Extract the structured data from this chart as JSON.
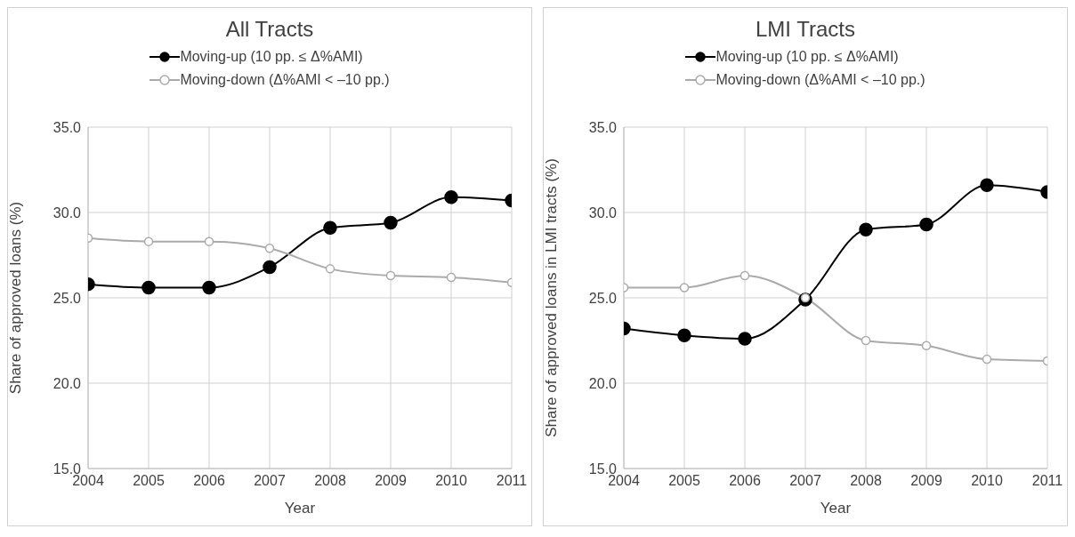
{
  "chart_data": [
    {
      "type": "line",
      "title": "All Tracts",
      "xlabel": "Year",
      "ylabel": "Share of approved loans (%)",
      "x": [
        2004,
        2005,
        2006,
        2007,
        2008,
        2009,
        2010,
        2011
      ],
      "series": [
        {
          "name": "Moving-up (10 pp. ≤ Δ%AMI)",
          "color": "#000000",
          "values": [
            25.8,
            25.6,
            25.6,
            26.8,
            29.1,
            29.4,
            30.9,
            30.7
          ]
        },
        {
          "name": "Moving-down (Δ%AMI < –10 pp.)",
          "color": "#aaaaaa",
          "values": [
            28.5,
            28.3,
            28.3,
            27.9,
            26.7,
            26.3,
            26.2,
            25.9
          ]
        }
      ],
      "xlim": [
        2004,
        2011
      ],
      "xticks": [
        2004,
        2005,
        2006,
        2007,
        2008,
        2009,
        2010,
        2011
      ],
      "ylim": [
        15,
        35
      ],
      "yticks": [
        {
          "value": 15,
          "label": "15.0"
        },
        {
          "value": 20,
          "label": "20.0"
        },
        {
          "value": 25,
          "label": "25.0"
        },
        {
          "value": 30,
          "label": "30.0"
        },
        {
          "value": 35,
          "label": "35.0"
        }
      ],
      "grid": true,
      "legend": "top",
      "marker": "circle",
      "line_style": "solid"
    },
    {
      "type": "line",
      "title": "LMI Tracts",
      "xlabel": "Year",
      "ylabel": "Share of approved loans in LMI tracts (%)",
      "x": [
        2004,
        2005,
        2006,
        2007,
        2008,
        2009,
        2010,
        2011
      ],
      "series": [
        {
          "name": "Moving-up (10 pp. ≤ Δ%AMI)",
          "color": "#000000",
          "values": [
            23.2,
            22.8,
            22.6,
            24.9,
            29.0,
            29.3,
            31.6,
            31.2
          ]
        },
        {
          "name": "Moving-down (Δ%AMI < –10 pp.)",
          "color": "#aaaaaa",
          "values": [
            25.6,
            25.6,
            26.3,
            25.0,
            22.5,
            22.2,
            21.4,
            21.3
          ]
        }
      ],
      "xlim": [
        2004,
        2011
      ],
      "xticks": [
        2004,
        2005,
        2006,
        2007,
        2008,
        2009,
        2010,
        2011
      ],
      "ylim": [
        15,
        35
      ],
      "yticks": [
        {
          "value": 15,
          "label": "15.0"
        },
        {
          "value": 20,
          "label": "20.0"
        },
        {
          "value": 25,
          "label": "25.0"
        },
        {
          "value": 30,
          "label": "30.0"
        },
        {
          "value": 35,
          "label": "35.0"
        }
      ],
      "grid": true,
      "legend": "top",
      "marker": "circle",
      "line_style": "solid"
    }
  ]
}
